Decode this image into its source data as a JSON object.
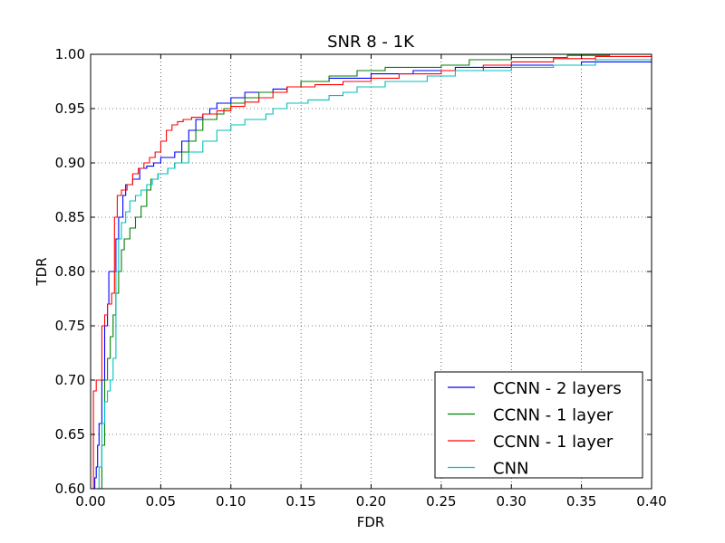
{
  "chart_data": {
    "type": "line",
    "title": "SNR 8 - 1K",
    "xlabel": "FDR",
    "ylabel": "TDR",
    "xlim": [
      0.0,
      0.4
    ],
    "ylim": [
      0.6,
      1.0
    ],
    "xticks": [
      "0.00",
      "0.05",
      "0.10",
      "0.15",
      "0.20",
      "0.25",
      "0.30",
      "0.35",
      "0.40"
    ],
    "yticks": [
      "0.60",
      "0.65",
      "0.70",
      "0.75",
      "0.80",
      "0.85",
      "0.90",
      "0.95",
      "1.00"
    ],
    "grid": true,
    "legend_position": "lower-right",
    "series": [
      {
        "name": "CCNN - 2 layers",
        "color": "#0000ff",
        "points": [
          [
            0.002,
            0.6
          ],
          [
            0.003,
            0.61
          ],
          [
            0.004,
            0.62
          ],
          [
            0.005,
            0.64
          ],
          [
            0.006,
            0.66
          ],
          [
            0.008,
            0.7
          ],
          [
            0.01,
            0.75
          ],
          [
            0.012,
            0.77
          ],
          [
            0.013,
            0.8
          ],
          [
            0.016,
            0.8
          ],
          [
            0.018,
            0.83
          ],
          [
            0.02,
            0.85
          ],
          [
            0.023,
            0.87
          ],
          [
            0.025,
            0.88
          ],
          [
            0.03,
            0.885
          ],
          [
            0.035,
            0.895
          ],
          [
            0.04,
            0.897
          ],
          [
            0.045,
            0.9
          ],
          [
            0.05,
            0.905
          ],
          [
            0.06,
            0.91
          ],
          [
            0.065,
            0.92
          ],
          [
            0.07,
            0.93
          ],
          [
            0.075,
            0.94
          ],
          [
            0.08,
            0.945
          ],
          [
            0.085,
            0.95
          ],
          [
            0.09,
            0.955
          ],
          [
            0.1,
            0.96
          ],
          [
            0.11,
            0.965
          ],
          [
            0.13,
            0.968
          ],
          [
            0.14,
            0.97
          ],
          [
            0.15,
            0.975
          ],
          [
            0.17,
            0.978
          ],
          [
            0.2,
            0.982
          ],
          [
            0.23,
            0.985
          ],
          [
            0.26,
            0.988
          ],
          [
            0.3,
            0.99
          ],
          [
            0.35,
            0.993
          ],
          [
            0.4,
            0.994
          ]
        ]
      },
      {
        "name": "CCNN - 1 layer",
        "color": "#008000",
        "points": [
          [
            0.007,
            0.6
          ],
          [
            0.008,
            0.64
          ],
          [
            0.01,
            0.7
          ],
          [
            0.012,
            0.72
          ],
          [
            0.014,
            0.74
          ],
          [
            0.016,
            0.76
          ],
          [
            0.018,
            0.78
          ],
          [
            0.02,
            0.8
          ],
          [
            0.022,
            0.82
          ],
          [
            0.024,
            0.83
          ],
          [
            0.028,
            0.84
          ],
          [
            0.032,
            0.85
          ],
          [
            0.036,
            0.86
          ],
          [
            0.04,
            0.875
          ],
          [
            0.043,
            0.885
          ],
          [
            0.048,
            0.89
          ],
          [
            0.055,
            0.895
          ],
          [
            0.06,
            0.9
          ],
          [
            0.065,
            0.91
          ],
          [
            0.07,
            0.92
          ],
          [
            0.075,
            0.93
          ],
          [
            0.08,
            0.94
          ],
          [
            0.09,
            0.945
          ],
          [
            0.095,
            0.95
          ],
          [
            0.1,
            0.955
          ],
          [
            0.11,
            0.96
          ],
          [
            0.12,
            0.965
          ],
          [
            0.14,
            0.97
          ],
          [
            0.15,
            0.975
          ],
          [
            0.17,
            0.98
          ],
          [
            0.19,
            0.985
          ],
          [
            0.21,
            0.988
          ],
          [
            0.25,
            0.99
          ],
          [
            0.27,
            0.995
          ],
          [
            0.3,
            0.997
          ],
          [
            0.34,
            0.999
          ],
          [
            0.37,
            1.0
          ],
          [
            0.4,
            1.0
          ]
        ]
      },
      {
        "name": "CCNN - 1 layer",
        "color": "#ff0000",
        "points": [
          [
            0.001,
            0.6
          ],
          [
            0.002,
            0.69
          ],
          [
            0.004,
            0.7
          ],
          [
            0.008,
            0.75
          ],
          [
            0.01,
            0.76
          ],
          [
            0.012,
            0.77
          ],
          [
            0.015,
            0.78
          ],
          [
            0.017,
            0.85
          ],
          [
            0.019,
            0.87
          ],
          [
            0.022,
            0.875
          ],
          [
            0.026,
            0.88
          ],
          [
            0.03,
            0.89
          ],
          [
            0.034,
            0.895
          ],
          [
            0.038,
            0.9
          ],
          [
            0.042,
            0.905
          ],
          [
            0.046,
            0.91
          ],
          [
            0.05,
            0.92
          ],
          [
            0.054,
            0.93
          ],
          [
            0.058,
            0.935
          ],
          [
            0.062,
            0.938
          ],
          [
            0.066,
            0.94
          ],
          [
            0.072,
            0.942
          ],
          [
            0.08,
            0.945
          ],
          [
            0.09,
            0.948
          ],
          [
            0.1,
            0.952
          ],
          [
            0.11,
            0.956
          ],
          [
            0.12,
            0.96
          ],
          [
            0.13,
            0.965
          ],
          [
            0.14,
            0.97
          ],
          [
            0.16,
            0.972
          ],
          [
            0.18,
            0.975
          ],
          [
            0.2,
            0.978
          ],
          [
            0.22,
            0.982
          ],
          [
            0.25,
            0.985
          ],
          [
            0.28,
            0.99
          ],
          [
            0.3,
            0.993
          ],
          [
            0.33,
            0.996
          ],
          [
            0.36,
            0.998
          ],
          [
            0.4,
            0.998
          ]
        ]
      },
      {
        "name": "CNN",
        "color": "#00bfbf",
        "points": [
          [
            0.005,
            0.6
          ],
          [
            0.006,
            0.62
          ],
          [
            0.008,
            0.66
          ],
          [
            0.01,
            0.68
          ],
          [
            0.012,
            0.69
          ],
          [
            0.014,
            0.7
          ],
          [
            0.016,
            0.72
          ],
          [
            0.018,
            0.8
          ],
          [
            0.02,
            0.83
          ],
          [
            0.022,
            0.845
          ],
          [
            0.025,
            0.855
          ],
          [
            0.028,
            0.865
          ],
          [
            0.032,
            0.87
          ],
          [
            0.036,
            0.875
          ],
          [
            0.04,
            0.88
          ],
          [
            0.044,
            0.885
          ],
          [
            0.048,
            0.89
          ],
          [
            0.055,
            0.895
          ],
          [
            0.06,
            0.9
          ],
          [
            0.07,
            0.91
          ],
          [
            0.08,
            0.92
          ],
          [
            0.09,
            0.93
          ],
          [
            0.1,
            0.935
          ],
          [
            0.11,
            0.94
          ],
          [
            0.125,
            0.945
          ],
          [
            0.13,
            0.95
          ],
          [
            0.14,
            0.955
          ],
          [
            0.155,
            0.958
          ],
          [
            0.17,
            0.962
          ],
          [
            0.18,
            0.965
          ],
          [
            0.19,
            0.97
          ],
          [
            0.21,
            0.975
          ],
          [
            0.24,
            0.98
          ],
          [
            0.26,
            0.985
          ],
          [
            0.3,
            0.988
          ],
          [
            0.33,
            0.99
          ],
          [
            0.36,
            0.995
          ],
          [
            0.4,
            0.995
          ]
        ]
      }
    ]
  }
}
